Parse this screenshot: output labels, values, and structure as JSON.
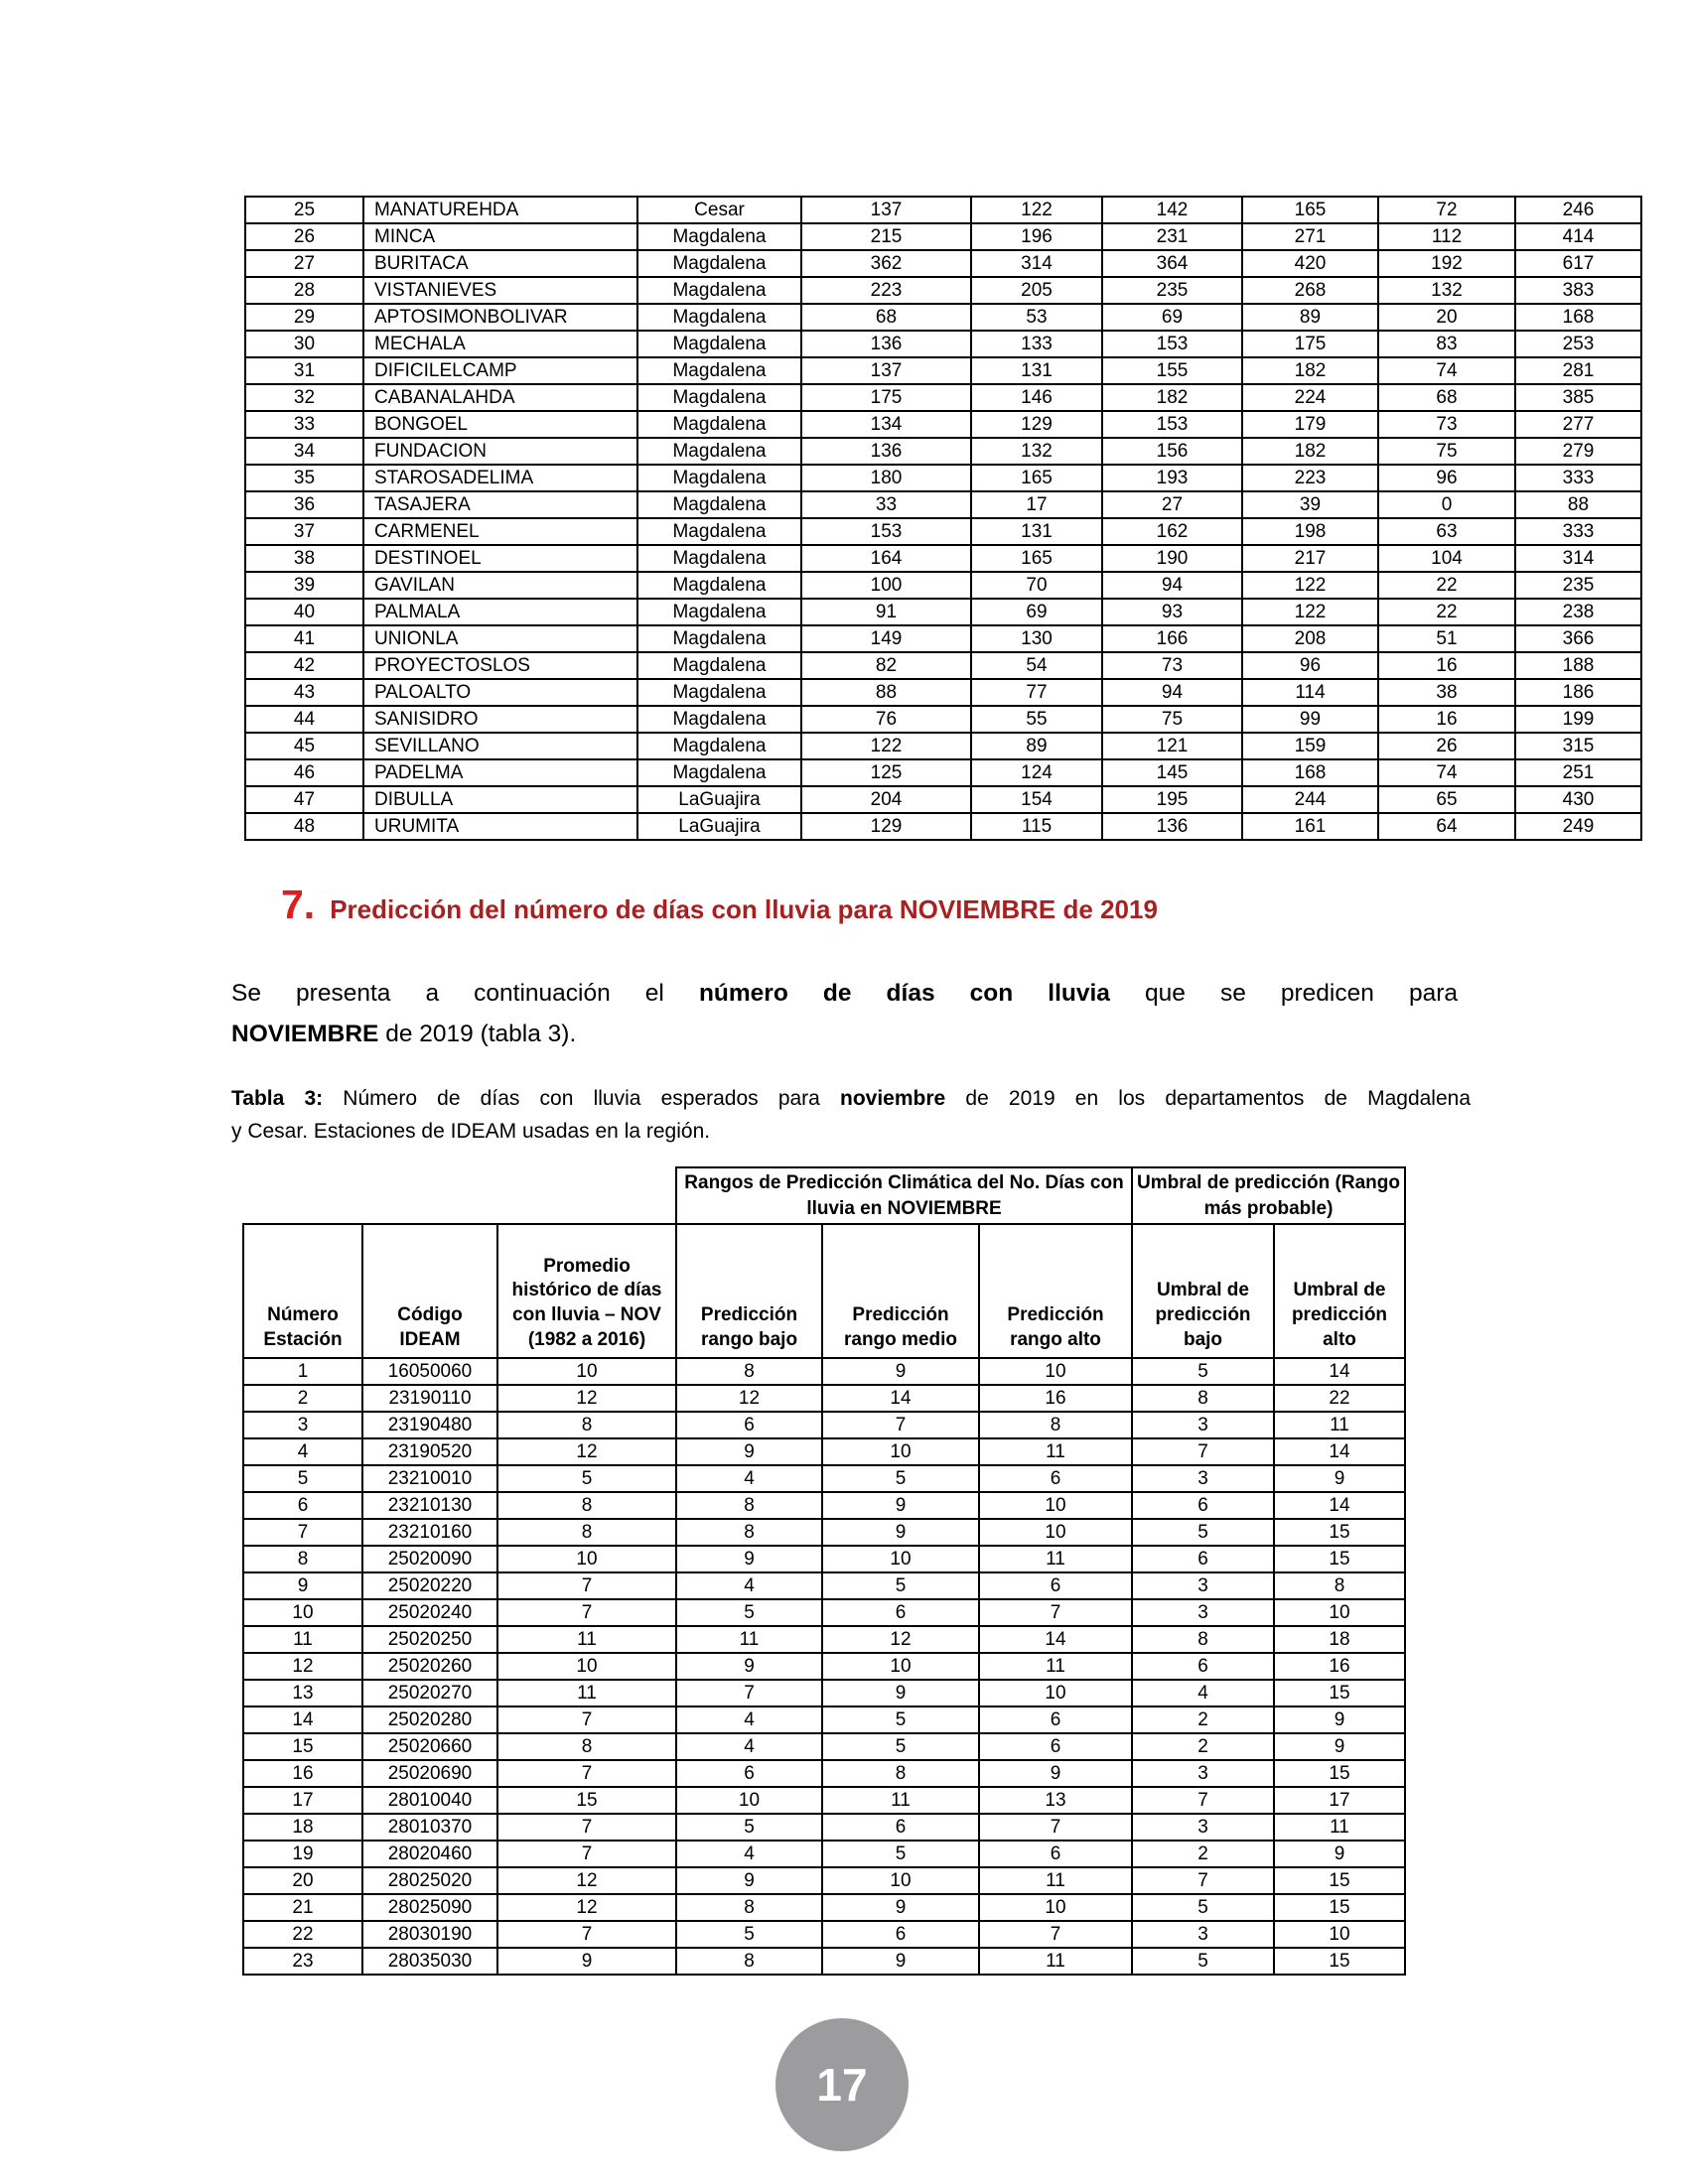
{
  "colors": {
    "section_number": "#db1f1f",
    "section_title": "#a8201f",
    "page_badge": "#9c9c9e"
  },
  "page": {
    "number": "17"
  },
  "section": {
    "number": "7.",
    "title": "Predicción del número de días con lluvia para NOVIEMBRE de 2019"
  },
  "paragraph": {
    "line1_a": "Se presenta a continuación el ",
    "line1_bold": "número de días con lluvia",
    "line1_b": " que se predicen para",
    "line2_bold": "NOVIEMBRE",
    "line2_a": " de 2019 (tabla 3)."
  },
  "caption": {
    "label": "Tabla 3:",
    "line1_a": " Número de días con lluvia esperados para ",
    "line1_bold": "noviembre",
    "line1_b": " de 2019 en los departamentos de Magdalena",
    "line2": "y Cesar. Estaciones de IDEAM usadas en la región."
  },
  "table2": {
    "rows": [
      [
        "25",
        "MANATUREHDA",
        "Cesar",
        "137",
        "122",
        "142",
        "165",
        "72",
        "246"
      ],
      [
        "26",
        "MINCA",
        "Magdalena",
        "215",
        "196",
        "231",
        "271",
        "112",
        "414"
      ],
      [
        "27",
        "BURITACA",
        "Magdalena",
        "362",
        "314",
        "364",
        "420",
        "192",
        "617"
      ],
      [
        "28",
        "VISTANIEVES",
        "Magdalena",
        "223",
        "205",
        "235",
        "268",
        "132",
        "383"
      ],
      [
        "29",
        "APTOSIMONBOLIVAR",
        "Magdalena",
        "68",
        "53",
        "69",
        "89",
        "20",
        "168"
      ],
      [
        "30",
        "MECHALA",
        "Magdalena",
        "136",
        "133",
        "153",
        "175",
        "83",
        "253"
      ],
      [
        "31",
        "DIFICILELCAMP",
        "Magdalena",
        "137",
        "131",
        "155",
        "182",
        "74",
        "281"
      ],
      [
        "32",
        "CABANALAHDA",
        "Magdalena",
        "175",
        "146",
        "182",
        "224",
        "68",
        "385"
      ],
      [
        "33",
        "BONGOEL",
        "Magdalena",
        "134",
        "129",
        "153",
        "179",
        "73",
        "277"
      ],
      [
        "34",
        "FUNDACION",
        "Magdalena",
        "136",
        "132",
        "156",
        "182",
        "75",
        "279"
      ],
      [
        "35",
        "STAROSADELIMA",
        "Magdalena",
        "180",
        "165",
        "193",
        "223",
        "96",
        "333"
      ],
      [
        "36",
        "TASAJERA",
        "Magdalena",
        "33",
        "17",
        "27",
        "39",
        "0",
        "88"
      ],
      [
        "37",
        "CARMENEL",
        "Magdalena",
        "153",
        "131",
        "162",
        "198",
        "63",
        "333"
      ],
      [
        "38",
        "DESTINOEL",
        "Magdalena",
        "164",
        "165",
        "190",
        "217",
        "104",
        "314"
      ],
      [
        "39",
        "GAVILAN",
        "Magdalena",
        "100",
        "70",
        "94",
        "122",
        "22",
        "235"
      ],
      [
        "40",
        "PALMALA",
        "Magdalena",
        "91",
        "69",
        "93",
        "122",
        "22",
        "238"
      ],
      [
        "41",
        "UNIONLA",
        "Magdalena",
        "149",
        "130",
        "166",
        "208",
        "51",
        "366"
      ],
      [
        "42",
        "PROYECTOSLOS",
        "Magdalena",
        "82",
        "54",
        "73",
        "96",
        "16",
        "188"
      ],
      [
        "43",
        "PALOALTO",
        "Magdalena",
        "88",
        "77",
        "94",
        "114",
        "38",
        "186"
      ],
      [
        "44",
        "SANISIDRO",
        "Magdalena",
        "76",
        "55",
        "75",
        "99",
        "16",
        "199"
      ],
      [
        "45",
        "SEVILLANO",
        "Magdalena",
        "122",
        "89",
        "121",
        "159",
        "26",
        "315"
      ],
      [
        "46",
        "PADELMA",
        "Magdalena",
        "125",
        "124",
        "145",
        "168",
        "74",
        "251"
      ],
      [
        "47",
        "DIBULLA",
        "LaGuajira",
        "204",
        "154",
        "195",
        "244",
        "65",
        "430"
      ],
      [
        "48",
        "URUMITA",
        "LaGuajira",
        "129",
        "115",
        "136",
        "161",
        "64",
        "249"
      ]
    ]
  },
  "table3": {
    "group_headers": [
      "Rangos de Predicción Climática del No. Días con lluvia en NOVIEMBRE",
      "Umbral de predicción (Rango más probable)"
    ],
    "col_headers": [
      "Número Estación",
      "Código IDEAM",
      "Promedio histórico de días con lluvia – NOV (1982 a 2016)",
      "Predicción rango bajo",
      "Predicción rango medio",
      "Predicción rango alto",
      "Umbral de predicción bajo",
      "Umbral de predicción alto"
    ],
    "rows": [
      [
        "1",
        "16050060",
        "10",
        "8",
        "9",
        "10",
        "5",
        "14"
      ],
      [
        "2",
        "23190110",
        "12",
        "12",
        "14",
        "16",
        "8",
        "22"
      ],
      [
        "3",
        "23190480",
        "8",
        "6",
        "7",
        "8",
        "3",
        "11"
      ],
      [
        "4",
        "23190520",
        "12",
        "9",
        "10",
        "11",
        "7",
        "14"
      ],
      [
        "5",
        "23210010",
        "5",
        "4",
        "5",
        "6",
        "3",
        "9"
      ],
      [
        "6",
        "23210130",
        "8",
        "8",
        "9",
        "10",
        "6",
        "14"
      ],
      [
        "7",
        "23210160",
        "8",
        "8",
        "9",
        "10",
        "5",
        "15"
      ],
      [
        "8",
        "25020090",
        "10",
        "9",
        "10",
        "11",
        "6",
        "15"
      ],
      [
        "9",
        "25020220",
        "7",
        "4",
        "5",
        "6",
        "3",
        "8"
      ],
      [
        "10",
        "25020240",
        "7",
        "5",
        "6",
        "7",
        "3",
        "10"
      ],
      [
        "11",
        "25020250",
        "11",
        "11",
        "12",
        "14",
        "8",
        "18"
      ],
      [
        "12",
        "25020260",
        "10",
        "9",
        "10",
        "11",
        "6",
        "16"
      ],
      [
        "13",
        "25020270",
        "11",
        "7",
        "9",
        "10",
        "4",
        "15"
      ],
      [
        "14",
        "25020280",
        "7",
        "4",
        "5",
        "6",
        "2",
        "9"
      ],
      [
        "15",
        "25020660",
        "8",
        "4",
        "5",
        "6",
        "2",
        "9"
      ],
      [
        "16",
        "25020690",
        "7",
        "6",
        "8",
        "9",
        "3",
        "15"
      ],
      [
        "17",
        "28010040",
        "15",
        "10",
        "11",
        "13",
        "7",
        "17"
      ],
      [
        "18",
        "28010370",
        "7",
        "5",
        "6",
        "7",
        "3",
        "11"
      ],
      [
        "19",
        "28020460",
        "7",
        "4",
        "5",
        "6",
        "2",
        "9"
      ],
      [
        "20",
        "28025020",
        "12",
        "9",
        "10",
        "11",
        "7",
        "15"
      ],
      [
        "21",
        "28025090",
        "12",
        "8",
        "9",
        "10",
        "5",
        "15"
      ],
      [
        "22",
        "28030190",
        "7",
        "5",
        "6",
        "7",
        "3",
        "10"
      ],
      [
        "23",
        "28035030",
        "9",
        "8",
        "9",
        "11",
        "5",
        "15"
      ]
    ]
  }
}
